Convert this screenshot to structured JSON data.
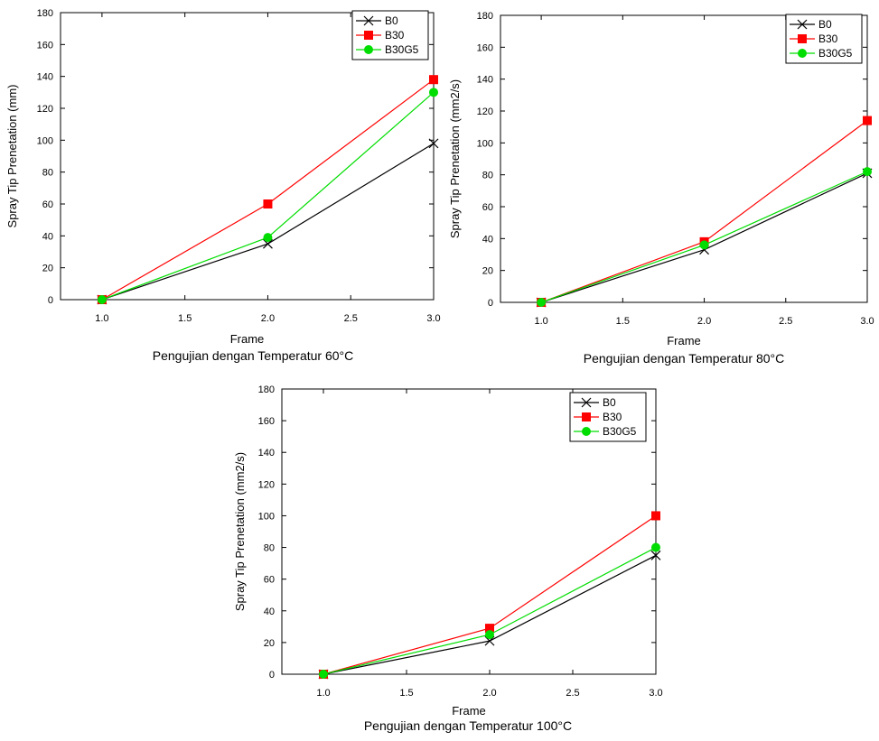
{
  "chart_data": [
    {
      "type": "line",
      "caption": "Pengujian dengan Temperatur 60°C",
      "xlabel": "Frame",
      "ylabel": "Spray Tip Prenetation (mm)",
      "x": [
        1.0,
        2.0,
        3.0
      ],
      "xlim": [
        0.75,
        3.0
      ],
      "ylim": [
        0,
        180
      ],
      "xticks": [
        "1.0",
        "1.5",
        "2.0",
        "2.5",
        "3.0"
      ],
      "yticks": [
        "0",
        "20",
        "40",
        "60",
        "80",
        "100",
        "120",
        "140",
        "160",
        "180"
      ],
      "legend_position": "top-right",
      "series": [
        {
          "name": "B0",
          "values": [
            0,
            35,
            98
          ],
          "color": "#000000",
          "marker": "x"
        },
        {
          "name": "B30",
          "values": [
            0,
            60,
            138
          ],
          "color": "#ff0000",
          "marker": "square"
        },
        {
          "name": "B30G5",
          "values": [
            0,
            39,
            130
          ],
          "color": "#00dd00",
          "marker": "circle"
        }
      ]
    },
    {
      "type": "line",
      "caption": "Pengujian dengan Temperatur 80°C",
      "xlabel": "Frame",
      "ylabel": "Spray Tip Prenetation (mm2/s)",
      "x": [
        1.0,
        2.0,
        3.0
      ],
      "xlim": [
        0.75,
        3.0
      ],
      "ylim": [
        0,
        180
      ],
      "xticks": [
        "1.0",
        "1.5",
        "2.0",
        "2.5",
        "3.0"
      ],
      "yticks": [
        "0",
        "20",
        "40",
        "60",
        "80",
        "100",
        "120",
        "140",
        "160",
        "180"
      ],
      "legend_position": "top-right",
      "series": [
        {
          "name": "B0",
          "values": [
            0,
            33,
            81
          ],
          "color": "#000000",
          "marker": "x"
        },
        {
          "name": "B30",
          "values": [
            0,
            38,
            114
          ],
          "color": "#ff0000",
          "marker": "square"
        },
        {
          "name": "B30G5",
          "values": [
            0,
            36,
            82
          ],
          "color": "#00dd00",
          "marker": "circle"
        }
      ]
    },
    {
      "type": "line",
      "caption": "Pengujian dengan Temperatur 100°C",
      "xlabel": "Frame",
      "ylabel": "Spray Tip Prenetation (mm2/s)",
      "x": [
        1.0,
        2.0,
        3.0
      ],
      "xlim": [
        0.75,
        3.0
      ],
      "ylim": [
        0,
        180
      ],
      "xticks": [
        "1.0",
        "1.5",
        "2.0",
        "2.5",
        "3.0"
      ],
      "yticks": [
        "0",
        "20",
        "40",
        "60",
        "80",
        "100",
        "120",
        "140",
        "160",
        "180"
      ],
      "legend_position": "top-right",
      "series": [
        {
          "name": "B0",
          "values": [
            0,
            21,
            75
          ],
          "color": "#000000",
          "marker": "x"
        },
        {
          "name": "B30",
          "values": [
            0,
            29,
            100
          ],
          "color": "#ff0000",
          "marker": "square"
        },
        {
          "name": "B30G5",
          "values": [
            0,
            25,
            80
          ],
          "color": "#00dd00",
          "marker": "circle"
        }
      ]
    }
  ]
}
